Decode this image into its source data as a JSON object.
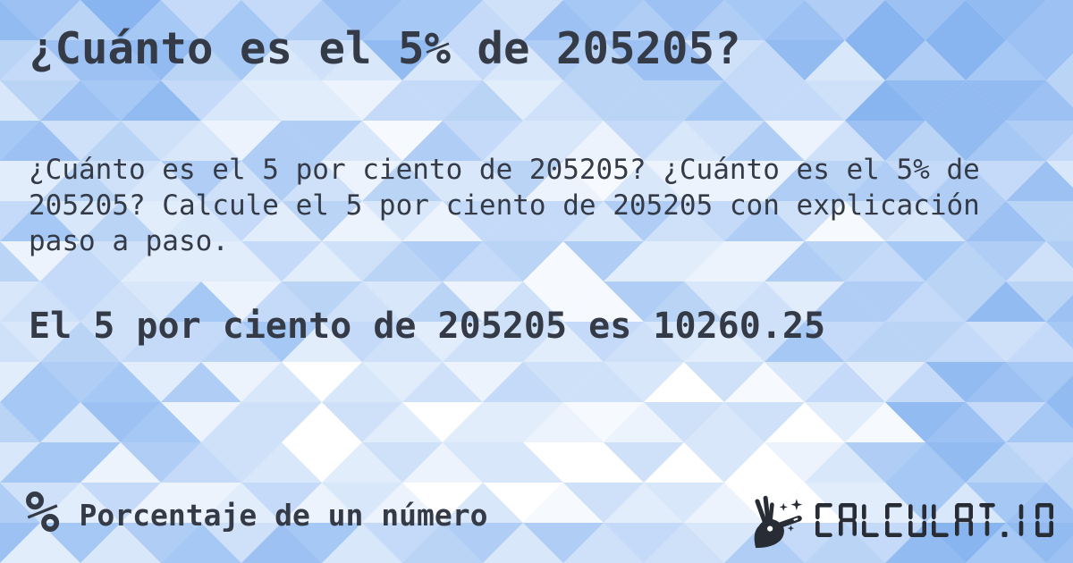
{
  "card": {
    "title": "¿Cuánto es el 5% de 205205?",
    "description": "¿Cuánto es el 5 por ciento de 205205? ¿Cuánto es el 5% de 205205? Calcule el 5 por ciento de 205205 con explicación paso a paso.",
    "result": "El 5 por ciento de 205205 es 10260.25"
  },
  "footer": {
    "category": {
      "icon": "percent-icon",
      "symbol": "%",
      "label": "Porcentaje de un número"
    },
    "brand": {
      "icon": "magic-wand-hand-icon",
      "name": "CALCULAT.IO"
    }
  },
  "colors": {
    "text": "#343b47",
    "logo": "#272c35",
    "background_palette": [
      "#ffffff",
      "#f6f9fe",
      "#ecf3fd",
      "#e2edfb",
      "#d8e7fa",
      "#cee1f9",
      "#c4daf8",
      "#bad4f6",
      "#b0cef5",
      "#a6c8f4",
      "#9cc1f2",
      "#92bbf1",
      "#88b5ef"
    ]
  }
}
